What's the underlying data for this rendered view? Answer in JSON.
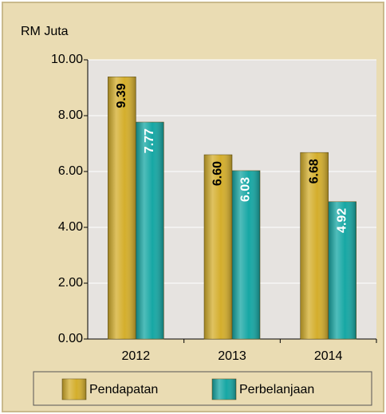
{
  "chart_data": {
    "type": "bar",
    "y_label": "RM Juta",
    "categories": [
      "2012",
      "2013",
      "2014"
    ],
    "series": [
      {
        "name": "Pendapatan",
        "color": "#d4ae2c",
        "values": [
          9.39,
          6.6,
          6.68
        ],
        "value_labels": [
          "9.39",
          "6.60",
          "6.68"
        ]
      },
      {
        "name": "Perbelanjaan",
        "color": "#16a7a4",
        "values": [
          7.77,
          6.03,
          4.92
        ],
        "value_labels": [
          "7.77",
          "6.03",
          "4.92"
        ]
      }
    ],
    "ylim": [
      0,
      10
    ],
    "yticks": [
      {
        "value": 0,
        "label": "0.00"
      },
      {
        "value": 2,
        "label": "2.00"
      },
      {
        "value": 4,
        "label": "4.00"
      },
      {
        "value": 6,
        "label": "6.00"
      },
      {
        "value": 8,
        "label": "8.00"
      },
      {
        "value": 10,
        "label": "10.00"
      }
    ],
    "grid": true,
    "legend": "bottom"
  }
}
